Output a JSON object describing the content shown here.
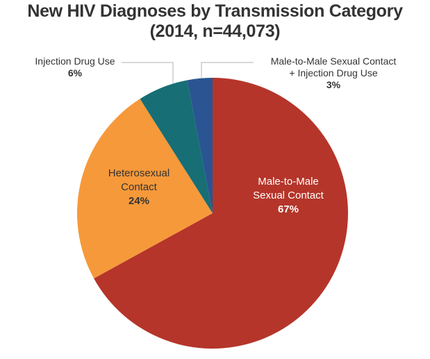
{
  "chart_data": {
    "type": "pie",
    "title": "New HIV Diagnoses by Transmission Category",
    "subtitle": "(2014, n=44,073)",
    "categories": [
      "Male-to-Male Sexual Contact",
      "Heterosexual Contact",
      "Injection Drug Use",
      "Male-to-Male Sexual Contact + Injection Drug Use"
    ],
    "values": [
      67,
      24,
      6,
      3
    ],
    "value_labels": [
      "67%",
      "24%",
      "6%",
      "3%"
    ],
    "colors": [
      "#b5352a",
      "#f6993a",
      "#186e75",
      "#2a5592"
    ],
    "start_angle": "12 o'clock",
    "direction": "clockwise",
    "legend": "none (direct labels)"
  },
  "title": {
    "line1": "New HIV Diagnoses by Transmission Category",
    "line2": "(2014, n=44,073)"
  },
  "labels": {
    "msm": {
      "line1": "Male-to-Male",
      "line2": "Sexual Contact",
      "pct": "67%"
    },
    "hetero": {
      "line1": "Heterosexual",
      "line2": "Contact",
      "pct": "24%"
    },
    "idu": {
      "line1": "Injection Drug Use",
      "pct": "6%"
    },
    "msm_idu": {
      "line1": "Male-to-Male Sexual Contact",
      "line2": "+ Injection Drug Use",
      "pct": "3%"
    }
  }
}
